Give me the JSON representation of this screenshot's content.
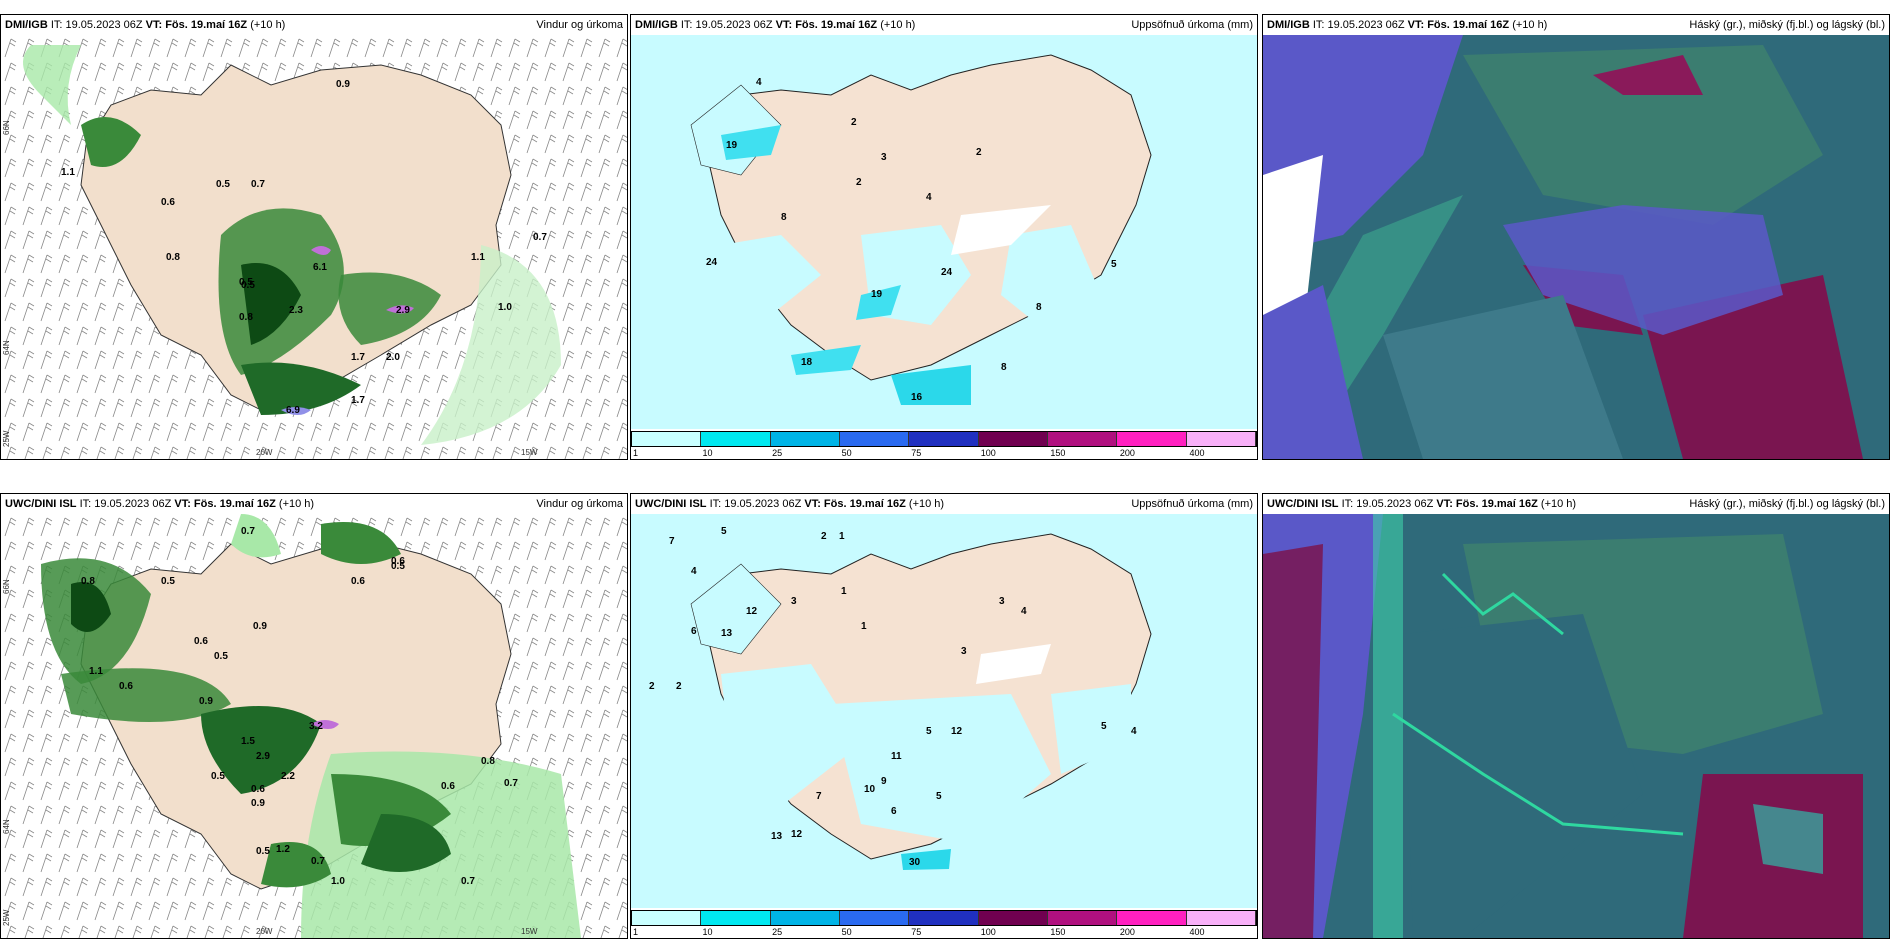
{
  "panels": [
    {
      "source": "DMI/IGB",
      "run": "IT: 19.05.2023 06Z",
      "valid": "VT: Fös. 19.maí 16Z",
      "lead": "(+10 h)",
      "right": "Vindur og úrkoma"
    },
    {
      "source": "DMI/IGB",
      "run": "IT: 19.05.2023 06Z",
      "valid": "VT: Fös. 19.maí 16Z",
      "lead": "(+10 h)",
      "right": "Uppsöfnuð úrkoma (mm)"
    },
    {
      "source": "DMI/IGB",
      "run": "IT: 19.05.2023 06Z",
      "valid": "VT: Fös. 19.maí 16Z",
      "lead": "(+10 h)",
      "right": "Háský (gr.), miðský (fj.bl.) og lágský (bl.)"
    },
    {
      "source": "UWC/DINI ISL",
      "run": "IT: 19.05.2023 06Z",
      "valid": "VT: Fös. 19.maí 16Z",
      "lead": "(+10 h)",
      "right": "Vindur og úrkoma"
    },
    {
      "source": "UWC/DINI ISL",
      "run": "IT: 19.05.2023 06Z",
      "valid": "VT: Fös. 19.maí 16Z",
      "lead": "(+10 h)",
      "right": "Uppsöfnuð úrkoma (mm)"
    },
    {
      "source": "UWC/DINI ISL",
      "run": "IT: 19.05.2023 06Z",
      "valid": "VT: Fös. 19.maí 16Z",
      "lead": "(+10 h)",
      "right": "Háský (gr.), miðský (fj.bl.) og lágský (bl.)"
    }
  ],
  "axis": {
    "lat66": "66N",
    "lat64": "64N",
    "lon20": "20W",
    "lon15": "15W",
    "lon25": "25W"
  },
  "colorbar": {
    "ticks": [
      "1",
      "10",
      "25",
      "50",
      "75",
      "100",
      "150",
      "200",
      "400"
    ],
    "colors": [
      "#c8ffff",
      "#00e8f0",
      "#00b4e6",
      "#2a6af0",
      "#2030c0",
      "#700050",
      "#b0107f",
      "#ff20c0",
      "#f8b0f8"
    ]
  },
  "wind_labels_dmi": [
    "0.9",
    "0.5",
    "1.1",
    "0.6",
    "0.5",
    "0.7",
    "0.8",
    "6.1",
    "0.5",
    "0.8",
    "2.3",
    "2.9",
    "1.7",
    "2.0",
    "6.9",
    "1.7",
    "1.1",
    "1.0",
    "0.7"
  ],
  "wind_labels_uwc": [
    "0.7",
    "0.8",
    "0.5",
    "0.6",
    "0.6",
    "0.9",
    "0.6",
    "0.5",
    "0.5",
    "1.1",
    "0.6",
    "0.9",
    "1.5",
    "3.2",
    "2.9",
    "2.2",
    "0.6",
    "0.9",
    "1.0",
    "0.7",
    "0.5",
    "1.2",
    "0.7",
    "0.5",
    "0.8",
    "0.7",
    "0.6"
  ],
  "precip_labels_dmi": [
    "4",
    "19",
    "2",
    "3",
    "2",
    "2",
    "4",
    "8",
    "24",
    "24",
    "19",
    "18",
    "5",
    "8",
    "8",
    "16"
  ],
  "precip_labels_uwc": [
    "7",
    "5",
    "2",
    "1",
    "4",
    "12",
    "13",
    "6",
    "2",
    "2",
    "3",
    "1",
    "1",
    "3",
    "4",
    "12",
    "11",
    "9",
    "10",
    "6",
    "5",
    "5",
    "7",
    "13",
    "12",
    "30",
    "5",
    "4",
    "3"
  ]
}
